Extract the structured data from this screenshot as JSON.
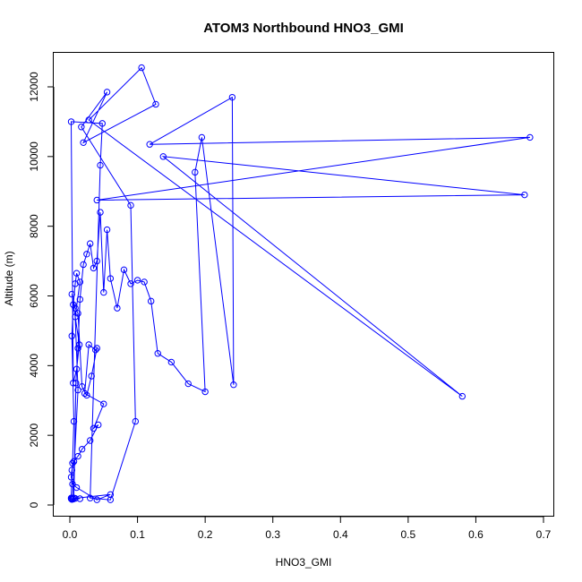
{
  "chart_data": {
    "type": "line",
    "title": "ATOM3 Northbound HNO3_GMI",
    "xlabel": "HNO3_GMI",
    "ylabel": "Altitude (m)",
    "xlim": [
      0,
      0.7
    ],
    "ylim": [
      0,
      12000
    ],
    "x_ticks": [
      "0.0",
      "0.1",
      "0.2",
      "0.3",
      "0.4",
      "0.5",
      "0.6",
      "0.7"
    ],
    "y_ticks": [
      "0",
      "2000",
      "4000",
      "6000",
      "8000",
      "10000",
      "12000"
    ],
    "grid": false,
    "legend": "none",
    "series_color": "#0000FF",
    "marker": "open-circle",
    "series": [
      {
        "x": [
          0.002,
          0.004,
          0.006,
          0.003,
          0.005,
          0.008,
          0.01,
          0.015,
          0.008,
          0.012,
          0.004,
          0.006,
          0.009,
          0.012,
          0.015,
          0.02,
          0.025,
          0.03,
          0.035,
          0.04,
          0.045,
          0.05,
          0.055,
          0.06,
          0.07,
          0.08,
          0.09,
          0.1,
          0.11,
          0.12,
          0.13,
          0.15,
          0.175,
          0.2,
          0.185,
          0.195,
          0.242,
          0.24,
          0.118,
          0.68,
          0.04,
          0.672,
          0.138,
          0.58,
          0.028,
          0.106,
          0.127,
          0.02,
          0.055,
          0.017,
          0.09,
          0.097,
          0.06,
          0.03,
          0.045,
          0.048,
          0.002,
          0.005,
          0.01,
          0.014,
          0.003,
          0.008,
          0.012,
          0.018,
          0.025,
          0.032,
          0.04,
          0.038,
          0.028,
          0.022,
          0.05,
          0.035,
          0.042,
          0.03,
          0.018,
          0.012,
          0.006,
          0.003,
          0.002,
          0.004,
          0.01,
          0.04,
          0.06,
          0.002,
          0.003,
          0.005,
          0.008,
          0.015
        ],
        "y": [
          200,
          1200,
          2400,
          4850,
          5750,
          6350,
          6650,
          6400,
          5400,
          3300,
          200,
          200,
          3500,
          4500,
          5900,
          6900,
          7200,
          7500,
          6800,
          7000,
          8400,
          6100,
          7900,
          6500,
          5650,
          6750,
          6350,
          6450,
          6400,
          5850,
          4350,
          4100,
          3480,
          3250,
          9550,
          10550,
          3450,
          11700,
          10350,
          10550,
          8750,
          8900,
          10000,
          3120,
          11050,
          12550,
          11500,
          10400,
          11850,
          10850,
          8600,
          2400,
          150,
          200,
          9750,
          10950,
          11000,
          3500,
          3900,
          4600,
          6050,
          5650,
          5500,
          3400,
          3150,
          3700,
          4500,
          4450,
          4600,
          3200,
          2900,
          2200,
          2300,
          1850,
          1600,
          1400,
          1250,
          1000,
          800,
          600,
          500,
          150,
          300,
          180,
          160,
          170,
          190,
          180
        ]
      }
    ]
  }
}
